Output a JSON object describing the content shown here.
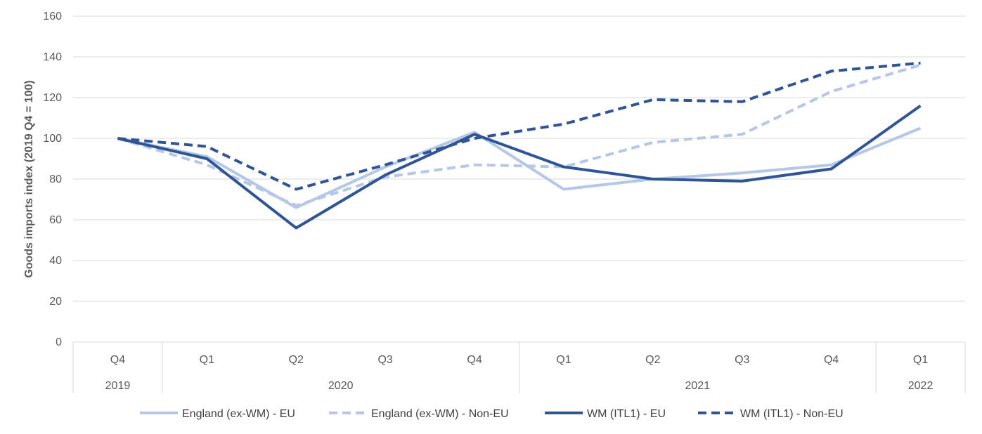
{
  "chart_data": {
    "type": "line",
    "title": "",
    "ylabel": "Goods imports index (2019 Q4 = 100)",
    "xlabel": "",
    "ylim": [
      0,
      160
    ],
    "yticks": [
      0,
      20,
      40,
      60,
      80,
      100,
      120,
      140,
      160
    ],
    "grid": true,
    "legend_position": "bottom",
    "categories": [
      "Q4",
      "Q1",
      "Q2",
      "Q3",
      "Q4",
      "Q1",
      "Q2",
      "Q3",
      "Q4",
      "Q1"
    ],
    "year_groups": [
      {
        "label": "2019",
        "count": 1
      },
      {
        "label": "2020",
        "count": 4
      },
      {
        "label": "2021",
        "count": 4
      },
      {
        "label": "2022",
        "count": 1
      }
    ],
    "series": [
      {
        "name": "England (ex-WM) - EU",
        "color": "#b4c7e7",
        "dash": "solid",
        "values": [
          100,
          91,
          66,
          86,
          103,
          75,
          80,
          83,
          87,
          105
        ]
      },
      {
        "name": "England (ex-WM) - Non-EU",
        "color": "#b4c7e7",
        "dash": "dashed",
        "values": [
          100,
          87,
          67,
          81,
          87,
          86,
          98,
          102,
          123,
          136
        ]
      },
      {
        "name": "WM (ITL1) - EU",
        "color": "#2f5597",
        "dash": "solid",
        "values": [
          100,
          90,
          56,
          82,
          102,
          86,
          80,
          79,
          85,
          116
        ]
      },
      {
        "name": "WM (ITL1) - Non-EU",
        "color": "#2f5597",
        "dash": "dashed",
        "values": [
          100,
          96,
          75,
          87,
          100,
          107,
          119,
          118,
          133,
          137
        ]
      }
    ]
  }
}
